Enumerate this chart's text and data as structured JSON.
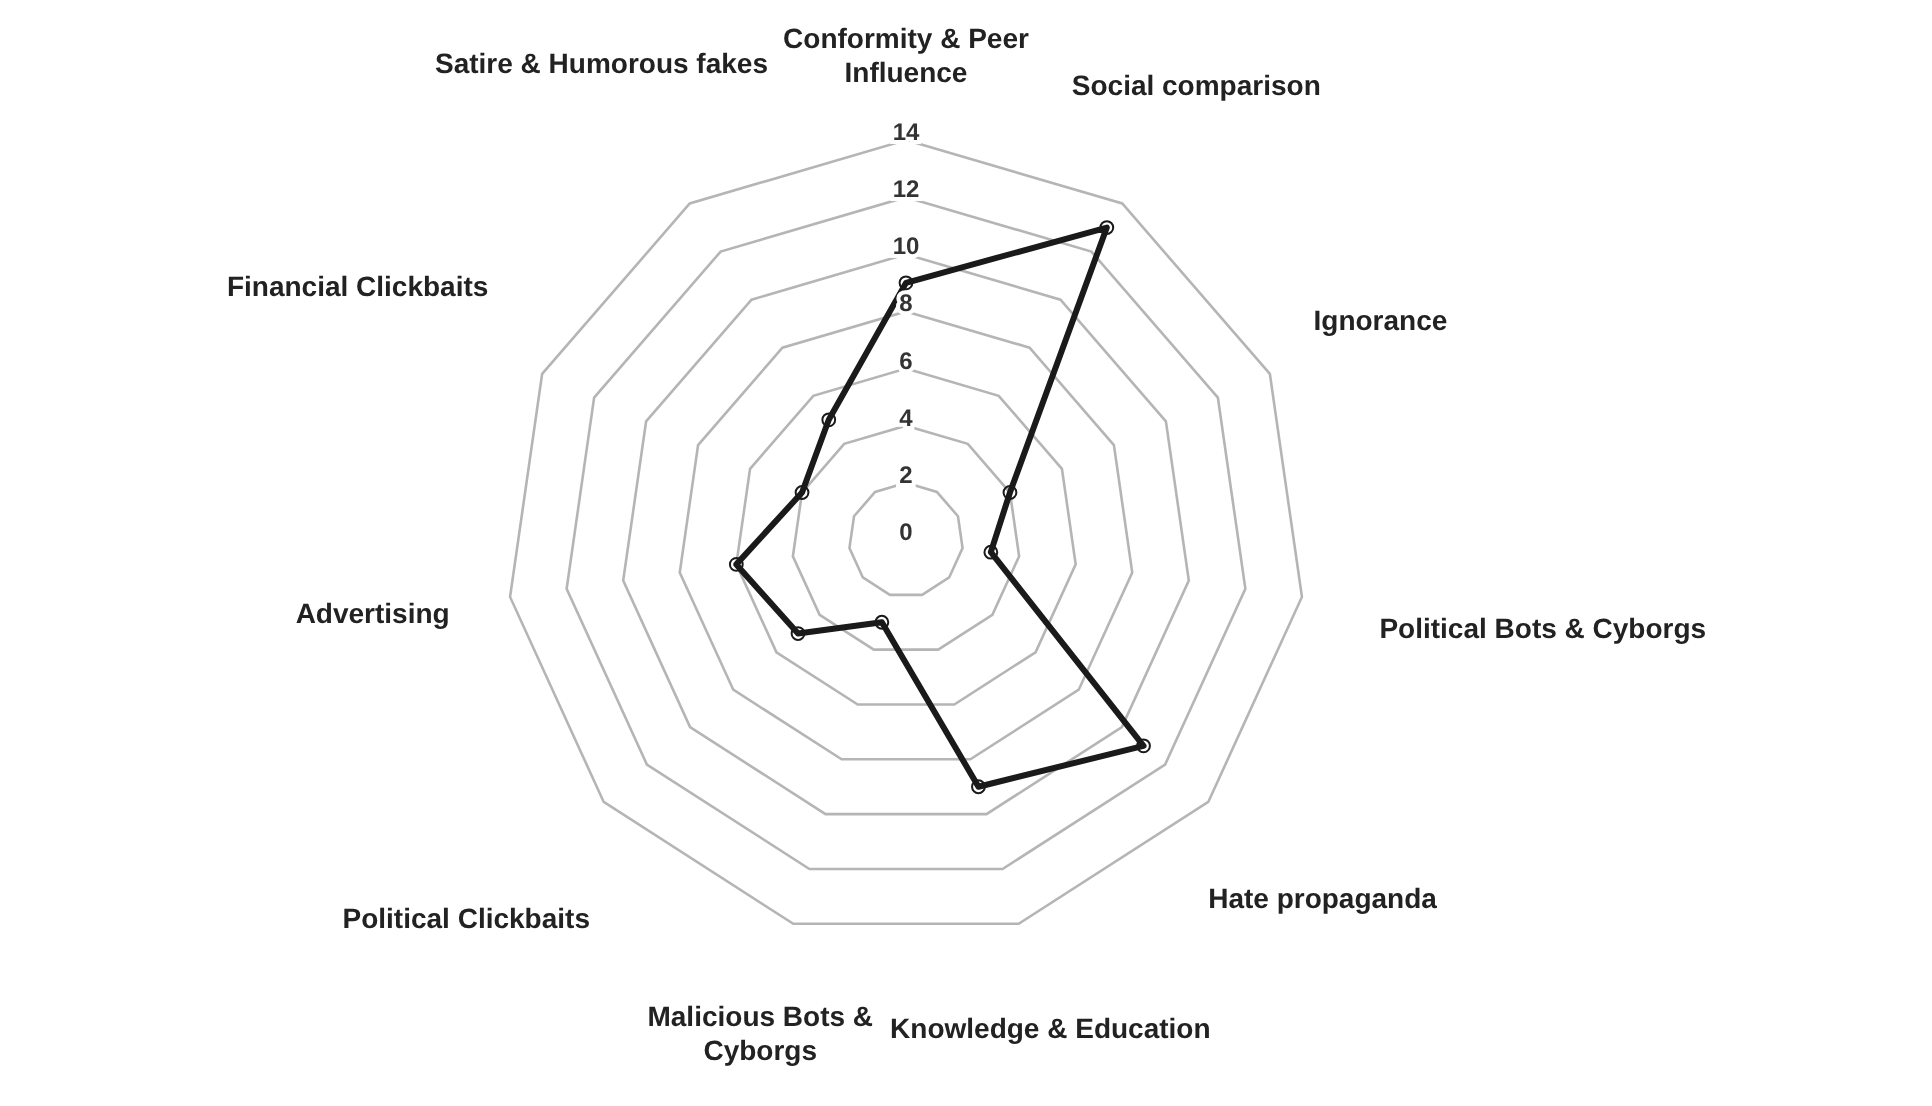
{
  "chart_data": {
    "type": "radar",
    "categories": [
      "Conformity & Peer Influence",
      "Social comparison",
      "Ignorance",
      "Political Bots & Cyborgs",
      "Hate propaganda",
      "Knowledge & Education",
      "Malicious Bots & Cyborgs",
      "Political Clickbaits",
      "Advertising",
      "Financial Clickbaits",
      "Satire & Humorous fakes"
    ],
    "series": [
      {
        "color": "#1a1a1a",
        "values": [
          9,
          13,
          4,
          3,
          11,
          9,
          3,
          5,
          6,
          4,
          5
        ]
      }
    ],
    "ylim": [
      0,
      14
    ],
    "yticks": [
      0,
      2,
      4,
      6,
      8,
      10,
      12,
      14
    ],
    "grid": true,
    "marker": "circle",
    "line_style": "solid"
  }
}
